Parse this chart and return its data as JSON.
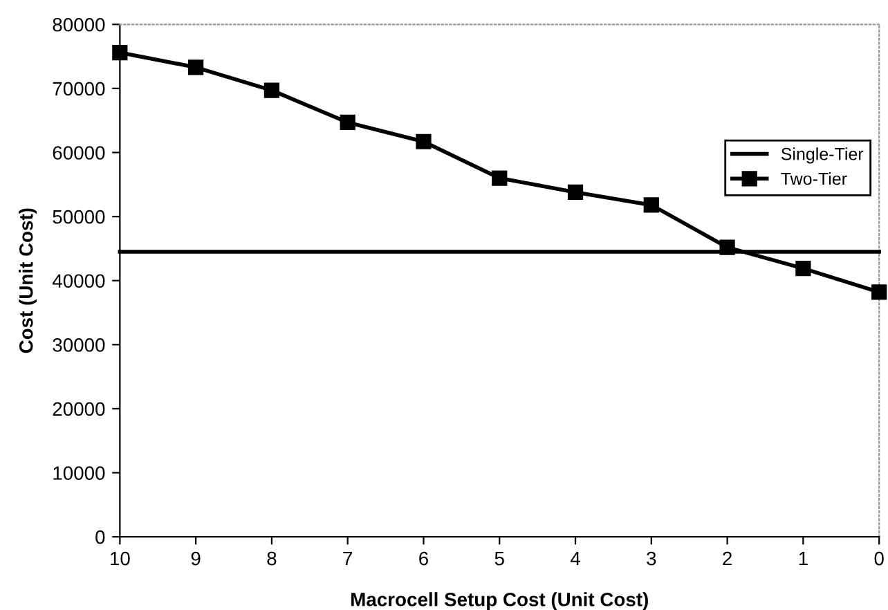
{
  "chart_data": {
    "type": "line",
    "xlabel": "Macrocell Setup Cost (Unit Cost)",
    "ylabel": "Cost (Unit Cost)",
    "xlim": [
      10,
      0
    ],
    "xticks": [
      10,
      9,
      8,
      7,
      6,
      5,
      4,
      3,
      2,
      1,
      0
    ],
    "ylim": [
      0,
      80000
    ],
    "yticks": [
      0,
      10000,
      20000,
      30000,
      40000,
      50000,
      60000,
      70000,
      80000
    ],
    "grid": false,
    "legend": "right",
    "series": [
      {
        "name": "Single-Tier",
        "color": "#000000",
        "marker": "none",
        "x": [
          10,
          0
        ],
        "values": [
          44500,
          44500
        ]
      },
      {
        "name": "Two-Tier",
        "color": "#000000",
        "marker": "square",
        "x": [
          10,
          9,
          8,
          7,
          6,
          5,
          4,
          3,
          2,
          1,
          0
        ],
        "values": [
          75600,
          73300,
          69700,
          64700,
          61700,
          56000,
          53800,
          51800,
          45200,
          41900,
          38200
        ]
      }
    ]
  }
}
